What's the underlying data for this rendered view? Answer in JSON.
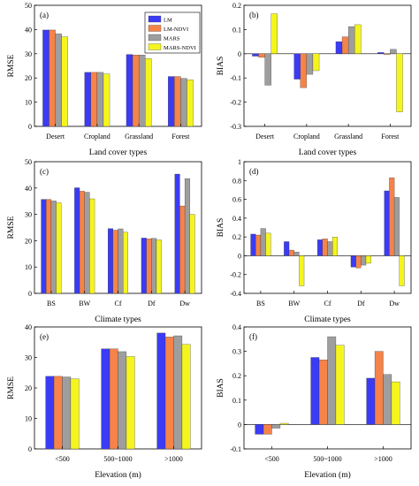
{
  "series_names": [
    "LM",
    "LM-NDVI",
    "MARS",
    "MARS-NDVI"
  ],
  "series_colors": [
    "#3b3bf5",
    "#f5834a",
    "#9e9e9e",
    "#f5f51e"
  ],
  "legend_position": "top-right of panel (a)",
  "chart_data": [
    {
      "type": "bar",
      "panel_label": "(a)",
      "ylabel": "RMSE",
      "xlabel": "Land cover types",
      "categories": [
        "Desert",
        "Cropland",
        "Grassland",
        "Forest"
      ],
      "ylim": [
        0,
        50
      ],
      "yticks": [
        0,
        10,
        20,
        30,
        40,
        50
      ],
      "series": [
        {
          "name": "LM",
          "values": [
            39.8,
            22.3,
            29.7,
            20.6
          ]
        },
        {
          "name": "LM-NDVI",
          "values": [
            39.8,
            22.3,
            29.5,
            20.6
          ]
        },
        {
          "name": "MARS",
          "values": [
            38.2,
            22.3,
            29.5,
            19.8
          ]
        },
        {
          "name": "MARS-NDVI",
          "values": [
            37.0,
            21.6,
            28.0,
            19.2
          ]
        }
      ]
    },
    {
      "type": "bar",
      "panel_label": "(b)",
      "ylabel": "BIAS",
      "xlabel": "Land cover types",
      "categories": [
        "Desert",
        "Cropland",
        "Grassland",
        "Forest"
      ],
      "ylim": [
        -0.3,
        0.2
      ],
      "yticks": [
        -0.3,
        -0.2,
        -0.1,
        0.0,
        0.1,
        0.2
      ],
      "series": [
        {
          "name": "LM",
          "values": [
            -0.01,
            -0.105,
            0.05,
            0.005
          ]
        },
        {
          "name": "LM-NDVI",
          "values": [
            -0.015,
            -0.14,
            0.07,
            -0.003
          ]
        },
        {
          "name": "MARS",
          "values": [
            -0.13,
            -0.085,
            0.112,
            0.018
          ]
        },
        {
          "name": "MARS-NDVI",
          "values": [
            0.165,
            -0.07,
            0.12,
            -0.24
          ]
        }
      ]
    },
    {
      "type": "bar",
      "panel_label": "(c)",
      "ylabel": "RMSE",
      "xlabel": "Climate types",
      "categories": [
        "BS",
        "BW",
        "Cf",
        "Df",
        "Dw"
      ],
      "ylim": [
        0,
        50
      ],
      "yticks": [
        0,
        10,
        20,
        30,
        40,
        50
      ],
      "series": [
        {
          "name": "LM",
          "values": [
            35.7,
            40.1,
            24.6,
            21.0,
            45.3
          ]
        },
        {
          "name": "LM-NDVI",
          "values": [
            35.7,
            38.8,
            24.0,
            20.7,
            33.2
          ]
        },
        {
          "name": "MARS",
          "values": [
            35.1,
            38.4,
            24.5,
            20.9,
            43.6
          ]
        },
        {
          "name": "MARS-NDVI",
          "values": [
            34.4,
            35.9,
            23.2,
            20.3,
            30.0
          ]
        }
      ]
    },
    {
      "type": "bar",
      "panel_label": "(d)",
      "ylabel": "BIAS",
      "xlabel": "Climate types",
      "categories": [
        "BS",
        "BW",
        "Cf",
        "Df",
        "Dw"
      ],
      "ylim": [
        -0.4,
        1.0
      ],
      "yticks": [
        -0.4,
        -0.2,
        0.0,
        0.2,
        0.4,
        0.6,
        0.8,
        1.0
      ],
      "series": [
        {
          "name": "LM",
          "values": [
            0.23,
            0.15,
            0.17,
            -0.12,
            0.69
          ]
        },
        {
          "name": "LM-NDVI",
          "values": [
            0.22,
            0.06,
            0.18,
            -0.13,
            0.83
          ]
        },
        {
          "name": "MARS",
          "values": [
            0.29,
            0.04,
            0.15,
            -0.1,
            0.62
          ]
        },
        {
          "name": "MARS-NDVI",
          "values": [
            0.24,
            -0.32,
            0.2,
            -0.08,
            -0.32
          ]
        }
      ]
    },
    {
      "type": "bar",
      "panel_label": "(e)",
      "ylabel": "RMSE",
      "xlabel": "Elevation (m)",
      "categories": [
        "<500",
        "500~1000",
        ">1000"
      ],
      "ylim": [
        0,
        40
      ],
      "yticks": [
        0,
        10,
        20,
        30,
        40
      ],
      "series": [
        {
          "name": "LM",
          "values": [
            23.8,
            32.8,
            38.0
          ]
        },
        {
          "name": "LM-NDVI",
          "values": [
            23.8,
            32.8,
            36.7
          ]
        },
        {
          "name": "MARS",
          "values": [
            23.6,
            31.9,
            37.1
          ]
        },
        {
          "name": "MARS-NDVI",
          "values": [
            23.0,
            30.3,
            34.3
          ]
        }
      ]
    },
    {
      "type": "bar",
      "panel_label": "(f)",
      "ylabel": "BIAS",
      "xlabel": "Elevation (m)",
      "categories": [
        "<500",
        "500~1000",
        ">1000"
      ],
      "ylim": [
        -0.1,
        0.4
      ],
      "yticks": [
        -0.1,
        0.0,
        0.1,
        0.2,
        0.3,
        0.4
      ],
      "series": [
        {
          "name": "LM",
          "values": [
            -0.04,
            0.275,
            0.19
          ]
        },
        {
          "name": "LM-NDVI",
          "values": [
            -0.04,
            0.265,
            0.3
          ]
        },
        {
          "name": "MARS",
          "values": [
            -0.015,
            0.36,
            0.205
          ]
        },
        {
          "name": "MARS-NDVI",
          "values": [
            0.005,
            0.325,
            0.175
          ]
        }
      ]
    }
  ]
}
